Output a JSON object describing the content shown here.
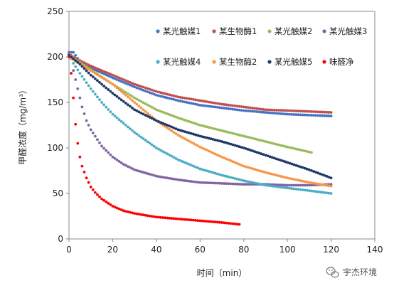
{
  "chart_data": {
    "type": "scatter",
    "xlabel": "时间（min）",
    "ylabel": "甲醛浓度（mg/m³）",
    "xlim": [
      0,
      140
    ],
    "ylim": [
      0,
      250
    ],
    "x_ticks": [
      "0",
      "20",
      "40",
      "60",
      "80",
      "100",
      "120",
      "140"
    ],
    "y_ticks": [
      "0",
      "50",
      "100",
      "150",
      "200",
      "250"
    ],
    "grid": false,
    "legend_placement": "top-right",
    "series": [
      {
        "name": "某光触媒1",
        "color": "#4472c4",
        "x": [
          0,
          2,
          5,
          10,
          20,
          30,
          40,
          50,
          60,
          70,
          80,
          90,
          100,
          110,
          120
        ],
        "y": [
          205,
          205,
          195,
          188,
          177,
          167,
          158,
          152,
          147,
          144,
          141,
          139,
          137,
          136,
          135
        ]
      },
      {
        "name": "某生物酶1",
        "color": "#c0504d",
        "x": [
          0,
          2,
          5,
          10,
          20,
          30,
          40,
          50,
          60,
          70,
          80,
          90,
          100,
          110,
          120
        ],
        "y": [
          203,
          200,
          196,
          190,
          180,
          170,
          162,
          156,
          152,
          148,
          145,
          142,
          141,
          140,
          139
        ]
      },
      {
        "name": "某光触媒2",
        "color": "#9bbb59",
        "x": [
          0,
          2,
          5,
          10,
          20,
          30,
          40,
          50,
          60,
          70,
          80,
          90,
          100,
          111
        ],
        "y": [
          203,
          199,
          194,
          186,
          170,
          155,
          142,
          133,
          125,
          119,
          113,
          107,
          101,
          95
        ]
      },
      {
        "name": "某光触媒3",
        "color": "#8064a2",
        "x": [
          0,
          1,
          2,
          4,
          6,
          8,
          10,
          15,
          20,
          25,
          30,
          40,
          50,
          60,
          70,
          80,
          90,
          100,
          110,
          120
        ],
        "y": [
          205,
          198,
          185,
          165,
          145,
          130,
          120,
          102,
          90,
          82,
          76,
          69,
          65,
          62,
          61,
          60,
          60,
          59,
          59,
          60
        ]
      },
      {
        "name": "某光触媒4",
        "color": "#4bacc6",
        "x": [
          0,
          2,
          5,
          10,
          15,
          20,
          30,
          40,
          50,
          60,
          70,
          80,
          90,
          100,
          110,
          120
        ],
        "y": [
          203,
          193,
          182,
          165,
          150,
          137,
          117,
          100,
          87,
          77,
          70,
          64,
          59,
          56,
          53,
          50
        ]
      },
      {
        "name": "某生物酶2",
        "color": "#f79646",
        "x": [
          0,
          2,
          5,
          10,
          20,
          30,
          40,
          50,
          60,
          70,
          80,
          90,
          100,
          110,
          120
        ],
        "y": [
          200,
          197,
          192,
          185,
          170,
          150,
          130,
          114,
          101,
          90,
          80,
          73,
          67,
          62,
          58
        ]
      },
      {
        "name": "某光触媒5",
        "color": "#1f3864",
        "x": [
          0,
          2,
          5,
          10,
          20,
          30,
          40,
          50,
          60,
          70,
          80,
          90,
          100,
          110,
          120
        ],
        "y": [
          202,
          198,
          192,
          180,
          160,
          142,
          130,
          120,
          113,
          107,
          100,
          92,
          84,
          76,
          67
        ]
      },
      {
        "name": "味醛净",
        "color": "#ff0000",
        "x": [
          0,
          1,
          2,
          3,
          4,
          5,
          6,
          8,
          10,
          12,
          15,
          20,
          25,
          30,
          35,
          40,
          50,
          60,
          70,
          78
        ],
        "y": [
          200,
          182,
          155,
          126,
          105,
          90,
          80,
          67,
          57,
          51,
          44,
          36,
          31,
          28,
          26,
          24,
          22,
          20,
          18,
          16
        ]
      }
    ]
  },
  "watermark": {
    "text": "宇杰环境"
  }
}
